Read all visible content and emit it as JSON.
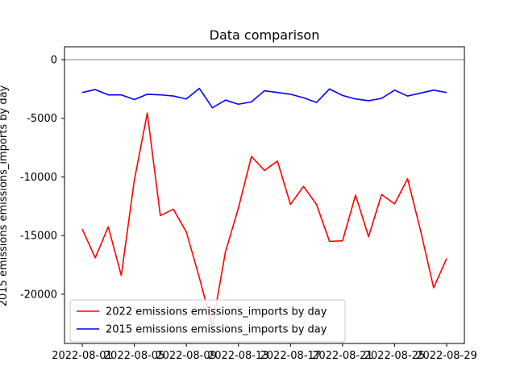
{
  "chart_data": {
    "type": "line",
    "title": "Data comparison",
    "ylabel": "2015 emissions emissions_imports by day",
    "xlabel": "",
    "x": [
      "2022-08-01",
      "2022-08-02",
      "2022-08-03",
      "2022-08-04",
      "2022-08-05",
      "2022-08-06",
      "2022-08-07",
      "2022-08-08",
      "2022-08-09",
      "2022-08-10",
      "2022-08-11",
      "2022-08-12",
      "2022-08-13",
      "2022-08-14",
      "2022-08-15",
      "2022-08-16",
      "2022-08-17",
      "2022-08-18",
      "2022-08-19",
      "2022-08-20",
      "2022-08-21",
      "2022-08-22",
      "2022-08-23",
      "2022-08-24",
      "2022-08-25",
      "2022-08-26",
      "2022-08-27",
      "2022-08-28",
      "2022-08-29"
    ],
    "xticks": [
      "2022-08-01",
      "2022-08-05",
      "2022-08-09",
      "2022-08-13",
      "2022-08-17",
      "2022-08-21",
      "2022-08-25",
      "2022-08-29"
    ],
    "yticks": [
      0,
      -5000,
      -10000,
      -15000,
      -20000
    ],
    "ylim": [
      -24200,
      1100
    ],
    "grid": false,
    "legend_position": "lower-left",
    "reference_line": {
      "y": 0,
      "color": "#808080"
    },
    "series": [
      {
        "name": "2022 emissions emissions_imports by day",
        "color": "#ff0000",
        "values": [
          -14450,
          -16900,
          -14250,
          -18400,
          -10300,
          -4550,
          -13300,
          -12750,
          -14700,
          -18600,
          -22750,
          -16400,
          -12650,
          -8250,
          -9450,
          -8650,
          -12350,
          -10800,
          -12350,
          -15500,
          -15450,
          -11550,
          -15100,
          -11500,
          -12300,
          -10150,
          -14600,
          -19450,
          -16950
        ]
      },
      {
        "name": "2015 emissions emissions_imports by day",
        "color": "#0000ff",
        "values": [
          -2800,
          -2550,
          -3000,
          -3000,
          -3400,
          -2950,
          -3000,
          -3100,
          -3350,
          -2450,
          -4100,
          -3450,
          -3800,
          -3600,
          -2650,
          -2800,
          -2950,
          -3250,
          -3650,
          -2500,
          -3050,
          -3350,
          -3500,
          -3300,
          -2600,
          -3100,
          -2850,
          -2600,
          -2800
        ]
      }
    ]
  }
}
